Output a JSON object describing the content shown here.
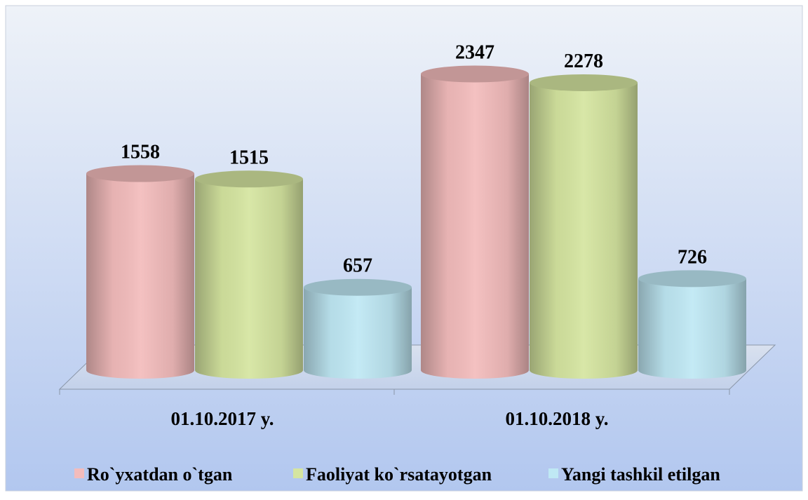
{
  "chart_data": {
    "type": "bar3d",
    "categories": [
      "01.10.2017 y.",
      "01.10.2018 y."
    ],
    "series": [
      {
        "name": "Ro`yxatdan o`tgan",
        "color": "#f3bcbc",
        "values": [
          1558,
          2347
        ]
      },
      {
        "name": "Faoliyat ko`rsatayotgan",
        "color": "#d5e5a0",
        "values": [
          1515,
          2278
        ]
      },
      {
        "name": "Yangi tashkil etilgan",
        "color": "#bfe8f4",
        "values": [
          657,
          726
        ]
      }
    ],
    "legend": "bottom"
  }
}
